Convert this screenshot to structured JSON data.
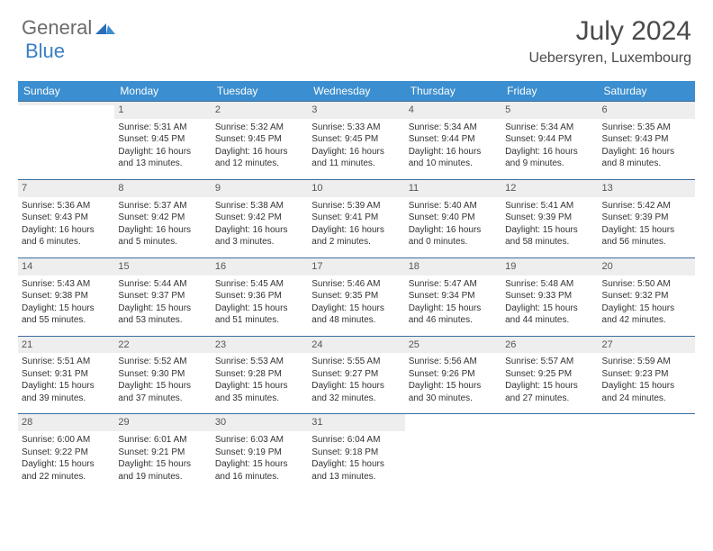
{
  "brand": {
    "part1": "General",
    "part2": "Blue"
  },
  "title": "July 2024",
  "location": "Uebersyren, Luxembourg",
  "colors": {
    "header_bg": "#3b8ecf",
    "header_text": "#ffffff",
    "row_border": "#3b6fa0",
    "daynum_bg": "#eeeeee",
    "brand_gray": "#6b6b6b",
    "brand_blue": "#3b7fc4"
  },
  "weekdays": [
    "Sunday",
    "Monday",
    "Tuesday",
    "Wednesday",
    "Thursday",
    "Friday",
    "Saturday"
  ],
  "weeks": [
    [
      {
        "num": "",
        "sunrise": "",
        "sunset": "",
        "daylight": ""
      },
      {
        "num": "1",
        "sunrise": "Sunrise: 5:31 AM",
        "sunset": "Sunset: 9:45 PM",
        "daylight": "Daylight: 16 hours and 13 minutes."
      },
      {
        "num": "2",
        "sunrise": "Sunrise: 5:32 AM",
        "sunset": "Sunset: 9:45 PM",
        "daylight": "Daylight: 16 hours and 12 minutes."
      },
      {
        "num": "3",
        "sunrise": "Sunrise: 5:33 AM",
        "sunset": "Sunset: 9:45 PM",
        "daylight": "Daylight: 16 hours and 11 minutes."
      },
      {
        "num": "4",
        "sunrise": "Sunrise: 5:34 AM",
        "sunset": "Sunset: 9:44 PM",
        "daylight": "Daylight: 16 hours and 10 minutes."
      },
      {
        "num": "5",
        "sunrise": "Sunrise: 5:34 AM",
        "sunset": "Sunset: 9:44 PM",
        "daylight": "Daylight: 16 hours and 9 minutes."
      },
      {
        "num": "6",
        "sunrise": "Sunrise: 5:35 AM",
        "sunset": "Sunset: 9:43 PM",
        "daylight": "Daylight: 16 hours and 8 minutes."
      }
    ],
    [
      {
        "num": "7",
        "sunrise": "Sunrise: 5:36 AM",
        "sunset": "Sunset: 9:43 PM",
        "daylight": "Daylight: 16 hours and 6 minutes."
      },
      {
        "num": "8",
        "sunrise": "Sunrise: 5:37 AM",
        "sunset": "Sunset: 9:42 PM",
        "daylight": "Daylight: 16 hours and 5 minutes."
      },
      {
        "num": "9",
        "sunrise": "Sunrise: 5:38 AM",
        "sunset": "Sunset: 9:42 PM",
        "daylight": "Daylight: 16 hours and 3 minutes."
      },
      {
        "num": "10",
        "sunrise": "Sunrise: 5:39 AM",
        "sunset": "Sunset: 9:41 PM",
        "daylight": "Daylight: 16 hours and 2 minutes."
      },
      {
        "num": "11",
        "sunrise": "Sunrise: 5:40 AM",
        "sunset": "Sunset: 9:40 PM",
        "daylight": "Daylight: 16 hours and 0 minutes."
      },
      {
        "num": "12",
        "sunrise": "Sunrise: 5:41 AM",
        "sunset": "Sunset: 9:39 PM",
        "daylight": "Daylight: 15 hours and 58 minutes."
      },
      {
        "num": "13",
        "sunrise": "Sunrise: 5:42 AM",
        "sunset": "Sunset: 9:39 PM",
        "daylight": "Daylight: 15 hours and 56 minutes."
      }
    ],
    [
      {
        "num": "14",
        "sunrise": "Sunrise: 5:43 AM",
        "sunset": "Sunset: 9:38 PM",
        "daylight": "Daylight: 15 hours and 55 minutes."
      },
      {
        "num": "15",
        "sunrise": "Sunrise: 5:44 AM",
        "sunset": "Sunset: 9:37 PM",
        "daylight": "Daylight: 15 hours and 53 minutes."
      },
      {
        "num": "16",
        "sunrise": "Sunrise: 5:45 AM",
        "sunset": "Sunset: 9:36 PM",
        "daylight": "Daylight: 15 hours and 51 minutes."
      },
      {
        "num": "17",
        "sunrise": "Sunrise: 5:46 AM",
        "sunset": "Sunset: 9:35 PM",
        "daylight": "Daylight: 15 hours and 48 minutes."
      },
      {
        "num": "18",
        "sunrise": "Sunrise: 5:47 AM",
        "sunset": "Sunset: 9:34 PM",
        "daylight": "Daylight: 15 hours and 46 minutes."
      },
      {
        "num": "19",
        "sunrise": "Sunrise: 5:48 AM",
        "sunset": "Sunset: 9:33 PM",
        "daylight": "Daylight: 15 hours and 44 minutes."
      },
      {
        "num": "20",
        "sunrise": "Sunrise: 5:50 AM",
        "sunset": "Sunset: 9:32 PM",
        "daylight": "Daylight: 15 hours and 42 minutes."
      }
    ],
    [
      {
        "num": "21",
        "sunrise": "Sunrise: 5:51 AM",
        "sunset": "Sunset: 9:31 PM",
        "daylight": "Daylight: 15 hours and 39 minutes."
      },
      {
        "num": "22",
        "sunrise": "Sunrise: 5:52 AM",
        "sunset": "Sunset: 9:30 PM",
        "daylight": "Daylight: 15 hours and 37 minutes."
      },
      {
        "num": "23",
        "sunrise": "Sunrise: 5:53 AM",
        "sunset": "Sunset: 9:28 PM",
        "daylight": "Daylight: 15 hours and 35 minutes."
      },
      {
        "num": "24",
        "sunrise": "Sunrise: 5:55 AM",
        "sunset": "Sunset: 9:27 PM",
        "daylight": "Daylight: 15 hours and 32 minutes."
      },
      {
        "num": "25",
        "sunrise": "Sunrise: 5:56 AM",
        "sunset": "Sunset: 9:26 PM",
        "daylight": "Daylight: 15 hours and 30 minutes."
      },
      {
        "num": "26",
        "sunrise": "Sunrise: 5:57 AM",
        "sunset": "Sunset: 9:25 PM",
        "daylight": "Daylight: 15 hours and 27 minutes."
      },
      {
        "num": "27",
        "sunrise": "Sunrise: 5:59 AM",
        "sunset": "Sunset: 9:23 PM",
        "daylight": "Daylight: 15 hours and 24 minutes."
      }
    ],
    [
      {
        "num": "28",
        "sunrise": "Sunrise: 6:00 AM",
        "sunset": "Sunset: 9:22 PM",
        "daylight": "Daylight: 15 hours and 22 minutes."
      },
      {
        "num": "29",
        "sunrise": "Sunrise: 6:01 AM",
        "sunset": "Sunset: 9:21 PM",
        "daylight": "Daylight: 15 hours and 19 minutes."
      },
      {
        "num": "30",
        "sunrise": "Sunrise: 6:03 AM",
        "sunset": "Sunset: 9:19 PM",
        "daylight": "Daylight: 15 hours and 16 minutes."
      },
      {
        "num": "31",
        "sunrise": "Sunrise: 6:04 AM",
        "sunset": "Sunset: 9:18 PM",
        "daylight": "Daylight: 15 hours and 13 minutes."
      },
      {
        "num": "",
        "sunrise": "",
        "sunset": "",
        "daylight": ""
      },
      {
        "num": "",
        "sunrise": "",
        "sunset": "",
        "daylight": ""
      },
      {
        "num": "",
        "sunrise": "",
        "sunset": "",
        "daylight": ""
      }
    ]
  ]
}
